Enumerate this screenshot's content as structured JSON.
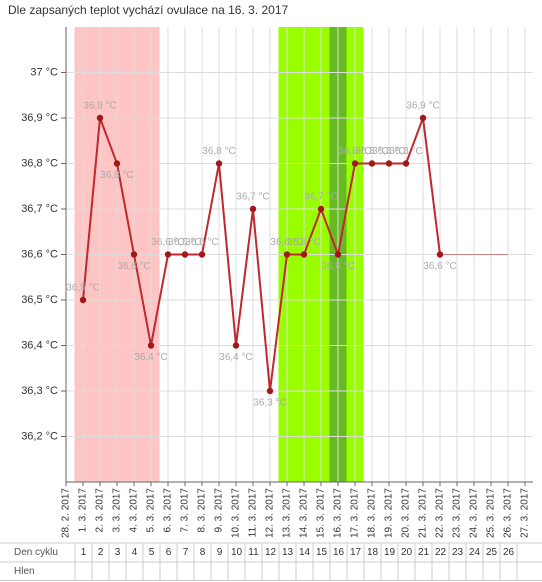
{
  "chart_data": {
    "type": "line",
    "title": "Dle zapsaných teplot vychází ovulace na 16. 3. 2017",
    "categories": [
      "28. 2. 2017",
      "1. 3. 2017",
      "2. 3. 2017",
      "3. 3. 2017",
      "4. 3. 2017",
      "5. 3. 2017",
      "6. 3. 2017",
      "7. 3. 2017",
      "8. 3. 2017",
      "9. 3. 2017",
      "10. 3. 2017",
      "11. 3. 2017",
      "12. 3. 2017",
      "13. 3. 2017",
      "14. 3. 2017",
      "15. 3. 2017",
      "16. 3. 2017",
      "17. 3. 2017",
      "18. 3. 2017",
      "19. 3. 2017",
      "20. 3. 2017",
      "21. 3. 2017",
      "22. 3. 2017",
      "23. 3. 2017",
      "24. 3. 2017",
      "25. 3. 2017",
      "26. 3. 2017",
      "27. 3. 2017"
    ],
    "values": [
      null,
      36.5,
      36.9,
      36.8,
      36.6,
      36.4,
      36.6,
      36.6,
      36.6,
      36.8,
      36.4,
      36.7,
      36.3,
      36.6,
      36.6,
      36.7,
      36.6,
      36.8,
      36.8,
      36.8,
      36.8,
      36.9,
      36.6,
      null,
      null,
      null,
      null,
      null
    ],
    "value_labels": [
      null,
      "36,5 °C",
      "36,9 °C",
      "36,8 °C",
      "36,6 °C",
      "36,4 °C",
      "36,6 °C",
      "36,6 °C",
      "36,6 °C",
      "36,8 °C",
      "36,4 °C",
      "36,7 °C",
      "36,3 °C",
      "36,6 °C",
      "36,6 °C",
      "36,7 °C",
      "36,6 °C",
      "36,8 °C",
      "36,8 °C",
      "36,8 °C",
      "36,8 °C",
      "36,9 °C",
      "36,6 °C",
      null,
      null,
      null,
      null,
      null
    ],
    "color": "#c0282d",
    "projection_values": [
      null,
      null,
      null,
      null,
      null,
      null,
      null,
      null,
      null,
      null,
      null,
      null,
      null,
      null,
      null,
      null,
      null,
      null,
      null,
      null,
      null,
      null,
      36.6,
      36.6,
      36.6,
      36.6,
      36.6,
      null
    ],
    "projection_color": "#d08080",
    "ylim": [
      36.1,
      37.1
    ],
    "yticks": [
      {
        "value": 36.2,
        "label": "36,2 °C"
      },
      {
        "value": 36.3,
        "label": "36,3 °C"
      },
      {
        "value": 36.4,
        "label": "36,4 °C"
      },
      {
        "value": 36.5,
        "label": "36,5 °C"
      },
      {
        "value": 36.6,
        "label": "36,6 °C"
      },
      {
        "value": 36.7,
        "label": "36,7 °C"
      },
      {
        "value": 36.8,
        "label": "36,8 °C"
      },
      {
        "value": 36.9,
        "label": "36,9 °C"
      },
      {
        "value": 37,
        "label": "37 °C"
      }
    ],
    "grid": true,
    "bands": [
      {
        "from": "1. 3. 2017",
        "to": "5. 3. 2017",
        "color": "#ffc4c4"
      },
      {
        "from": "13. 3. 2017",
        "to": "17. 3. 2017",
        "color": "#99ff00"
      },
      {
        "from": "16. 3. 2017",
        "to": "16. 3. 2017",
        "color": "#66bb22"
      }
    ]
  },
  "cycle_table": {
    "rows": [
      {
        "label": "Den cyklu",
        "cells": [
          1,
          2,
          3,
          4,
          5,
          6,
          7,
          8,
          9,
          10,
          11,
          12,
          13,
          14,
          15,
          16,
          17,
          18,
          19,
          20,
          21,
          22,
          23,
          24,
          25,
          26
        ]
      },
      {
        "label": "Hlen"
      }
    ]
  }
}
